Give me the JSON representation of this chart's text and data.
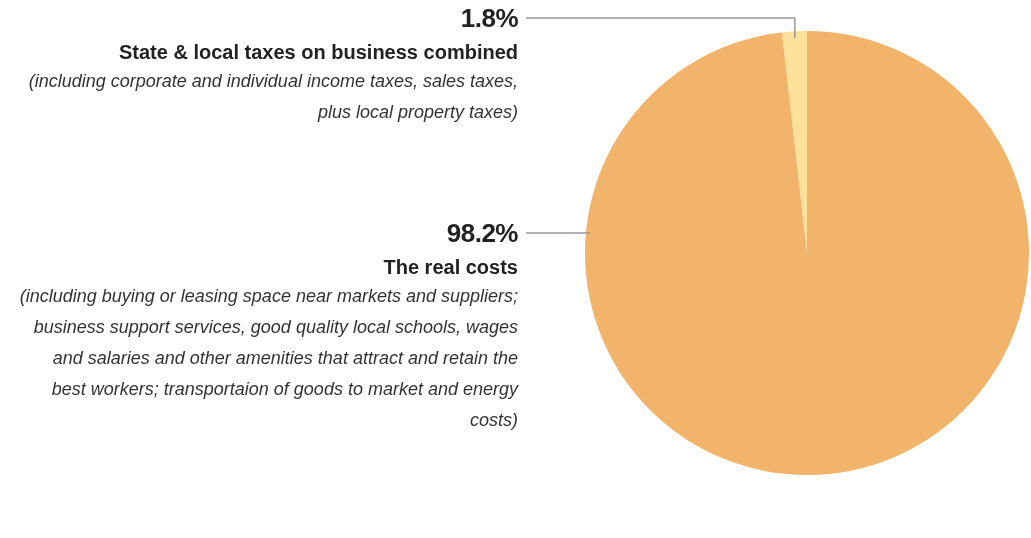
{
  "chart_data": {
    "type": "pie",
    "categories": [
      "State & local taxes on business combined",
      "The real costs"
    ],
    "values": [
      1.8,
      98.2
    ],
    "value_labels": [
      "1.8%",
      "98.2%"
    ],
    "colors": [
      "#fde09a",
      "#f2b46a"
    ],
    "annotations": [
      "(including corporate and individual income taxes, sales taxes, plus local property taxes)",
      "(including buying or leasing space near markets and suppliers; business support services, good quality local schools, wages and salaries and other amenities that attract and retain the best workers; transportaion of goods to market and energy costs)"
    ],
    "legend": false
  }
}
